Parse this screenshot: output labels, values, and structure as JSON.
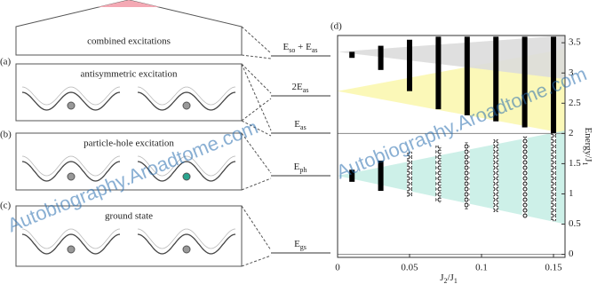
{
  "panels": [
    {
      "title": "combined excitations"
    },
    {
      "tag": "(a)",
      "title": "antisymmetric excitation"
    },
    {
      "tag": "(b)",
      "title": "particle-hole excitation"
    },
    {
      "tag": "(c)",
      "title": "ground state"
    }
  ],
  "levels": [
    [
      "E",
      "so",
      " + E",
      "as"
    ],
    [
      "2E",
      "as"
    ],
    [
      "E",
      "as"
    ],
    [
      "E",
      "ph"
    ],
    [
      "E",
      "gs"
    ]
  ],
  "watermark": "Autobiography.Aroadtome.com",
  "chart_data": {
    "type": "range",
    "tag": "(d)",
    "xlabel": [
      "J",
      "2",
      "/J",
      "1"
    ],
    "ylabel": [
      "Energy/J",
      "1"
    ],
    "x": [
      0.01,
      0.03,
      0.05,
      0.07,
      0.09,
      0.11,
      0.13,
      0.15
    ],
    "series": [
      {
        "color": "#000000",
        "lo": [
          3.25,
          3.05,
          2.7,
          2.4,
          2.3,
          2.2,
          2.1,
          2.0
        ],
        "hi": [
          3.35,
          3.45,
          3.55,
          3.6,
          3.6,
          3.6,
          3.6,
          3.6
        ]
      },
      {
        "color": "#000000",
        "open": true,
        "lo": [
          1.2,
          1.05,
          0.95,
          0.85,
          0.75,
          0.7,
          0.6,
          0.55
        ],
        "hi": [
          1.4,
          1.55,
          1.7,
          1.8,
          1.85,
          1.9,
          1.95,
          2.0
        ]
      }
    ],
    "hlines": [
      0,
      2
    ],
    "regions": [
      {
        "color": "#fbf7b0",
        "points": [
          [
            0,
            2.7
          ],
          [
            0.158,
            3.4
          ],
          [
            0.158,
            2.0
          ]
        ]
      },
      {
        "color": "#dcdcdc",
        "points": [
          [
            0,
            3.35
          ],
          [
            0.158,
            3.62
          ],
          [
            0.158,
            2.9
          ]
        ]
      },
      {
        "color": "#c8eee6",
        "points": [
          [
            0,
            1.3
          ],
          [
            0.158,
            2.05
          ],
          [
            0.158,
            0.5
          ]
        ]
      }
    ],
    "xlim": [
      0,
      0.158
    ],
    "ylim": [
      -0.05,
      3.62
    ],
    "xticks": [
      0,
      0.05,
      0.1,
      0.15
    ],
    "yticks": [
      0,
      0.5,
      1,
      1.5,
      2,
      2.5,
      3,
      3.5
    ]
  }
}
